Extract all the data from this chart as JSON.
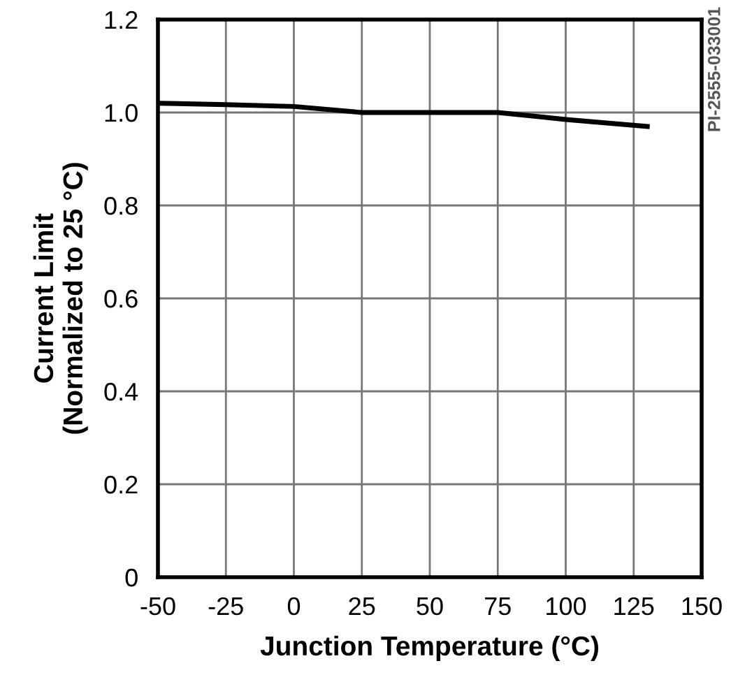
{
  "chart_data": {
    "type": "line",
    "xlabel": "Junction Temperature (°C)",
    "ylabel": "Current Limit\n(Normalized to 25 °C)",
    "x": [
      -50,
      -25,
      0,
      25,
      50,
      75,
      100,
      130
    ],
    "series": [
      {
        "color": "#000000",
        "values": [
          1.02,
          1.017,
          1.013,
          1.0,
          1.0,
          1.0,
          0.985,
          0.97
        ]
      }
    ],
    "xlim": [
      -50,
      150
    ],
    "xticks": [
      -50,
      -25,
      0,
      25,
      50,
      75,
      100,
      125,
      150
    ],
    "ylim": [
      0,
      1.2
    ],
    "yticks": [
      0,
      {
        "value": 0.2,
        "label": "0.2"
      },
      {
        "value": 0.4,
        "label": "0.4"
      },
      {
        "value": 0.6,
        "label": "0.6"
      },
      {
        "value": 0.8,
        "label": "0.8"
      },
      {
        "value": 1.0,
        "label": "1.0"
      },
      {
        "value": 1.2,
        "label": "1.2"
      }
    ],
    "grid": true,
    "marker": "none",
    "line_style": "solid",
    "annotations": [
      "PI-2555-033001"
    ]
  }
}
